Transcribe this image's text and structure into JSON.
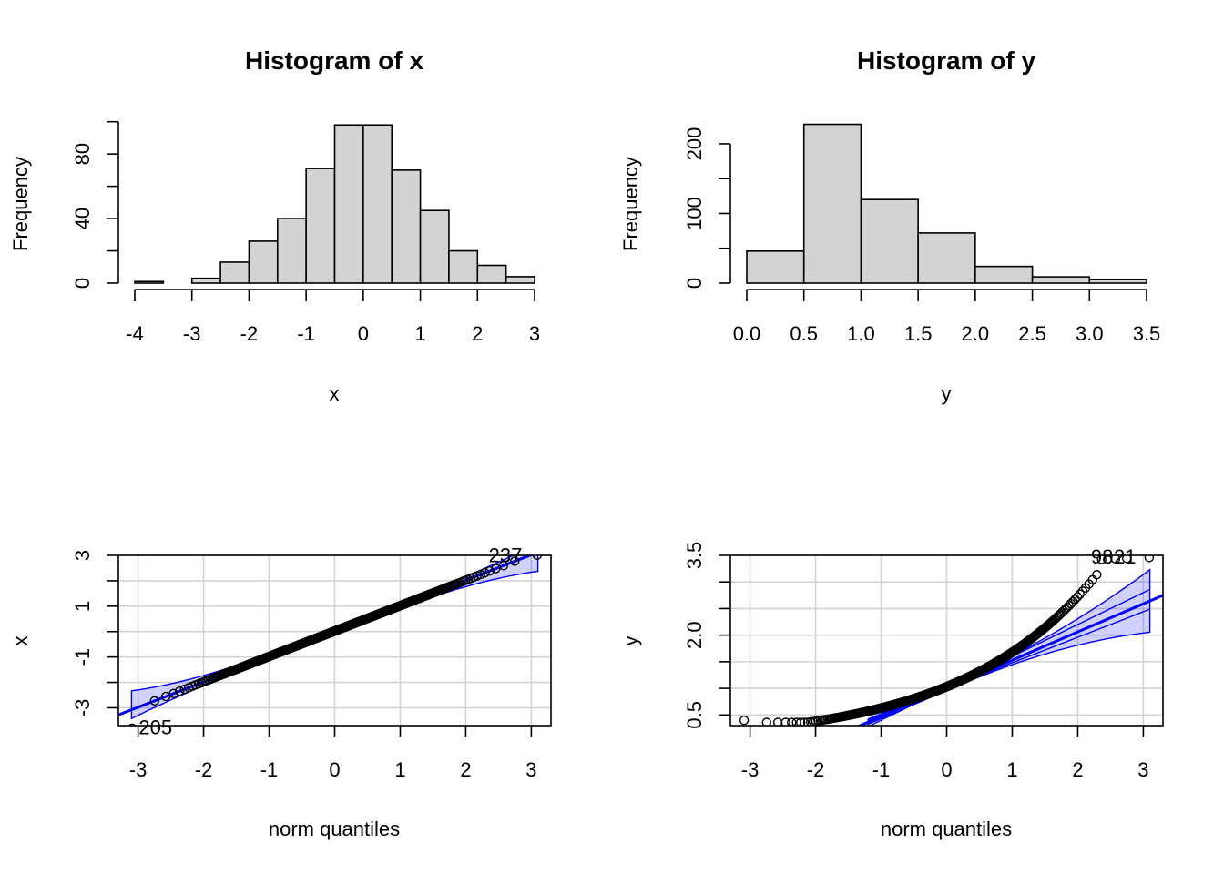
{
  "chart_data": [
    {
      "type": "bar",
      "title": "Histogram of x",
      "xlabel": "x",
      "ylabel": "Frequency",
      "bin_edges": [
        -4,
        -3.5,
        -3,
        -2.5,
        -2,
        -1.5,
        -1,
        -0.5,
        0,
        0.5,
        1,
        1.5,
        2,
        2.5,
        3
      ],
      "values": [
        1,
        0,
        3,
        13,
        26,
        40,
        71,
        98,
        98,
        70,
        45,
        20,
        11,
        4
      ],
      "xticks": [
        "-4",
        "-3",
        "-2",
        "-1",
        "0",
        "1",
        "2",
        "3"
      ],
      "yticks": [
        "0",
        "40",
        "80"
      ],
      "ylim": [
        0,
        100
      ]
    },
    {
      "type": "bar",
      "title": "Histogram of y",
      "xlabel": "y",
      "ylabel": "Frequency",
      "bin_edges": [
        0,
        0.5,
        1,
        1.5,
        2,
        2.5,
        3,
        3.5
      ],
      "values": [
        46,
        228,
        120,
        72,
        24,
        9,
        5
      ],
      "xticks": [
        "0.0",
        "0.5",
        "1.0",
        "1.5",
        "2.0",
        "2.5",
        "3.0",
        "3.5"
      ],
      "yticks": [
        "0",
        "100",
        "200"
      ],
      "ylim": [
        0,
        230
      ]
    },
    {
      "type": "scatter",
      "title": "",
      "xlabel": "norm quantiles",
      "ylabel": "x",
      "xlim": [
        -3.3,
        3.3
      ],
      "ylim": [
        -3.7,
        3
      ],
      "xticks": [
        "-3",
        "-2",
        "-1",
        "0",
        "1",
        "2",
        "3"
      ],
      "yticks": [
        "-3",
        "-1",
        "1",
        "3"
      ],
      "grid": true,
      "reference_line": {
        "intercept": 0.02,
        "slope": 1.0
      },
      "confidence_band": true,
      "labels": [
        "205",
        "237"
      ]
    },
    {
      "type": "scatter",
      "title": "",
      "xlabel": "norm quantiles",
      "ylabel": "y",
      "xlim": [
        -3.3,
        3.3
      ],
      "ylim": [
        0.3,
        3.5
      ],
      "xticks": [
        "-3",
        "-2",
        "-1",
        "0",
        "1",
        "2",
        "3"
      ],
      "yticks": [
        "0.5",
        "2.0",
        "3.5"
      ],
      "grid": true,
      "reference_line": {
        "intercept": 1.0,
        "slope": 0.53
      },
      "confidence_band": true,
      "labels": [
        "98",
        "21"
      ]
    }
  ],
  "colors": {
    "bar_fill": "#d3d3d3",
    "reference": "#0000ff",
    "grid": "#d3d3d3"
  }
}
